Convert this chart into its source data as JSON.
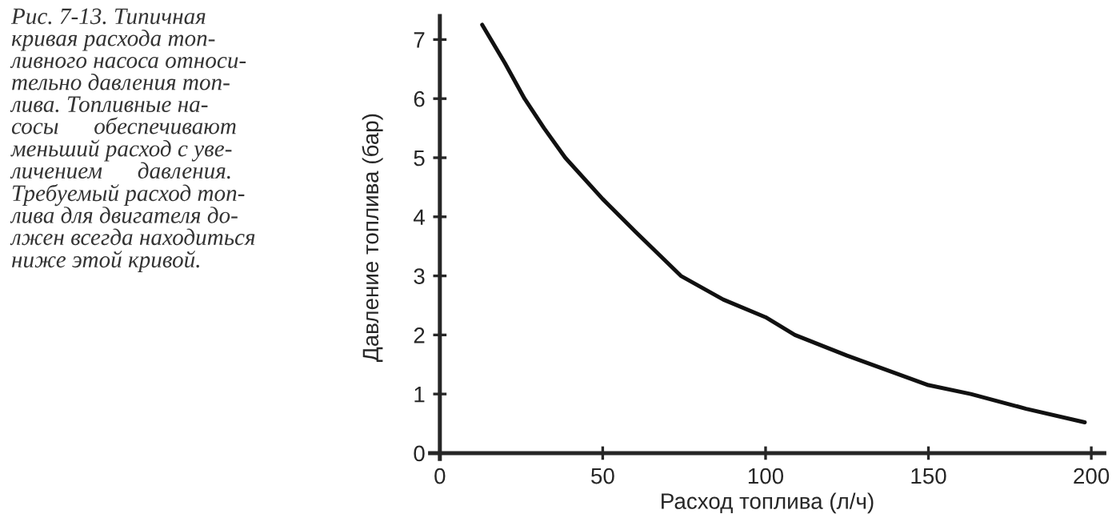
{
  "chart_data": {
    "type": "line",
    "xlabel": "Расход топлива (л/ч)",
    "ylabel": "Давление топлива (бар)",
    "annotations": [
      "Рис. 7-13. Типичная\nкривая расхода топ-\nливного насоса относи-\nтельно давления топ-\nлива. Топливные на-\nсосы      обеспечивают\nменьший расход с уве-\nличением      давления.\nТребуемый расход топ-\nлива для двигателя до-\nлжен всегда находиться\nниже этой кривой."
    ],
    "series": [
      {
        "color": "#111111",
        "x": [
          13,
          20,
          26,
          32,
          38.5,
          50,
          60,
          74,
          87,
          100,
          109,
          125,
          150,
          163,
          180,
          198
        ],
        "values": [
          7.25,
          6.6,
          6.0,
          5.5,
          5.0,
          4.3,
          3.75,
          3.0,
          2.6,
          2.3,
          2.0,
          1.65,
          1.15,
          1.0,
          0.75,
          0.52
        ]
      }
    ],
    "xlim": [
      -3,
      204
    ],
    "ylim": [
      -0.1,
      7.4
    ],
    "xticks": [
      0,
      50,
      100,
      150,
      200
    ],
    "yticks": [
      0,
      1,
      2,
      3,
      4,
      5,
      6,
      7
    ],
    "grid": false,
    "marker": "none",
    "line_style": "solid"
  }
}
